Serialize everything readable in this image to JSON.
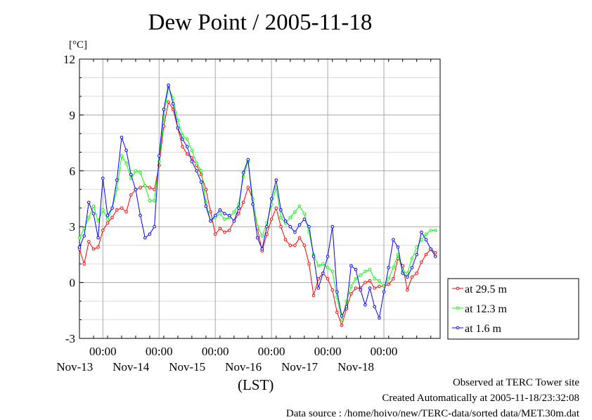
{
  "title": "Dew Point / 2005-11-18",
  "chart_data": {
    "type": "line",
    "title": "Dew Point / 2005-11-18",
    "ylabel": "[°C]",
    "xlabel": "(LST)",
    "ylim": [
      -3,
      12
    ],
    "yticks": [
      -3,
      0,
      3,
      6,
      9,
      12
    ],
    "xlim": [
      "2005-11-12T14:00",
      "2005-11-19T00:00"
    ],
    "xticks": [
      {
        "x": "2005-11-13T00:00",
        "time": "00:00",
        "date": "Nov-13"
      },
      {
        "x": "2005-11-14T00:00",
        "time": "00:00",
        "date": "Nov-14"
      },
      {
        "x": "2005-11-15T00:00",
        "time": "00:00",
        "date": "Nov-15"
      },
      {
        "x": "2005-11-16T00:00",
        "time": "00:00",
        "date": "Nov-16"
      },
      {
        "x": "2005-11-17T00:00",
        "time": "00:00",
        "date": "Nov-17"
      },
      {
        "x": "2005-11-18T00:00",
        "time": "00:00",
        "date": "Nov-18"
      }
    ],
    "grid": true,
    "legend_position": "right",
    "series": [
      {
        "name": "at 29.5 m",
        "color": "#ff0000",
        "marker": "circle",
        "points": [
          [
            "2005-11-12T14:00",
            1.8
          ],
          [
            "2005-11-12T16:00",
            1.0
          ],
          [
            "2005-11-12T18:00",
            2.2
          ],
          [
            "2005-11-12T20:00",
            1.8
          ],
          [
            "2005-11-12T22:00",
            1.9
          ],
          [
            "2005-11-13T00:00",
            2.8
          ],
          [
            "2005-11-13T02:00",
            3.2
          ],
          [
            "2005-11-13T04:00",
            3.5
          ],
          [
            "2005-11-13T06:00",
            3.9
          ],
          [
            "2005-11-13T08:00",
            4.0
          ],
          [
            "2005-11-13T10:00",
            3.8
          ],
          [
            "2005-11-13T12:00",
            4.7
          ],
          [
            "2005-11-13T14:00",
            5.0
          ],
          [
            "2005-11-13T16:00",
            5.1
          ],
          [
            "2005-11-13T18:00",
            5.2
          ],
          [
            "2005-11-13T20:00",
            5.1
          ],
          [
            "2005-11-13T22:00",
            5.0
          ],
          [
            "2005-11-14T00:00",
            6.3
          ],
          [
            "2005-11-14T02:00",
            8.4
          ],
          [
            "2005-11-14T04:00",
            9.7
          ],
          [
            "2005-11-14T06:00",
            9.3
          ],
          [
            "2005-11-14T08:00",
            8.3
          ],
          [
            "2005-11-14T10:00",
            7.3
          ],
          [
            "2005-11-14T12:00",
            6.9
          ],
          [
            "2005-11-14T14:00",
            6.7
          ],
          [
            "2005-11-14T16:00",
            6.3
          ],
          [
            "2005-11-14T18:00",
            5.8
          ],
          [
            "2005-11-14T20:00",
            5.0
          ],
          [
            "2005-11-14T22:00",
            3.8
          ],
          [
            "2005-11-15T00:00",
            2.6
          ],
          [
            "2005-11-15T02:00",
            2.9
          ],
          [
            "2005-11-15T04:00",
            2.7
          ],
          [
            "2005-11-15T06:00",
            2.8
          ],
          [
            "2005-11-15T08:00",
            3.3
          ],
          [
            "2005-11-15T10:00",
            3.7
          ],
          [
            "2005-11-15T12:00",
            4.3
          ],
          [
            "2005-11-15T14:00",
            5.1
          ],
          [
            "2005-11-15T16:00",
            4.5
          ],
          [
            "2005-11-15T18:00",
            2.9
          ],
          [
            "2005-11-15T20:00",
            1.7
          ],
          [
            "2005-11-15T22:00",
            2.6
          ],
          [
            "2005-11-16T00:00",
            3.4
          ],
          [
            "2005-11-16T02:00",
            4.0
          ],
          [
            "2005-11-16T04:00",
            3.0
          ],
          [
            "2005-11-16T06:00",
            2.3
          ],
          [
            "2005-11-16T08:00",
            2.0
          ],
          [
            "2005-11-16T10:00",
            2.0
          ],
          [
            "2005-11-16T12:00",
            2.4
          ],
          [
            "2005-11-16T14:00",
            2.0
          ],
          [
            "2005-11-16T16:00",
            1.0
          ],
          [
            "2005-11-16T18:00",
            -0.7
          ],
          [
            "2005-11-16T20:00",
            0.2
          ],
          [
            "2005-11-16T22:00",
            0.5
          ],
          [
            "2005-11-17T00:00",
            0.2
          ],
          [
            "2005-11-17T02:00",
            -0.4
          ],
          [
            "2005-11-17T04:00",
            -1.6
          ],
          [
            "2005-11-17T06:00",
            -2.3
          ],
          [
            "2005-11-17T08:00",
            -1.4
          ],
          [
            "2005-11-17T10:00",
            -0.6
          ],
          [
            "2005-11-17T12:00",
            -0.3
          ],
          [
            "2005-11-17T14:00",
            -0.3
          ],
          [
            "2005-11-17T16:00",
            0.0
          ],
          [
            "2005-11-17T18:00",
            0.1
          ],
          [
            "2005-11-17T20:00",
            -0.3
          ],
          [
            "2005-11-17T22:00",
            -0.2
          ],
          [
            "2005-11-18T00:00",
            -0.2
          ],
          [
            "2005-11-18T02:00",
            -0.1
          ],
          [
            "2005-11-18T04:00",
            0.2
          ],
          [
            "2005-11-18T06:00",
            1.3
          ],
          [
            "2005-11-18T08:00",
            0.9
          ],
          [
            "2005-11-18T10:00",
            -0.4
          ],
          [
            "2005-11-18T12:00",
            0.3
          ],
          [
            "2005-11-18T14:00",
            0.5
          ],
          [
            "2005-11-18T16:00",
            1.1
          ],
          [
            "2005-11-18T18:00",
            1.5
          ],
          [
            "2005-11-18T20:00",
            1.8
          ],
          [
            "2005-11-18T22:00",
            1.6
          ]
        ]
      },
      {
        "name": "at 12.3 m",
        "color": "#00ff00",
        "marker": "circle",
        "points": [
          [
            "2005-11-12T14:00",
            2.4
          ],
          [
            "2005-11-12T16:00",
            2.9
          ],
          [
            "2005-11-12T18:00",
            3.5
          ],
          [
            "2005-11-12T20:00",
            4.1
          ],
          [
            "2005-11-12T22:00",
            3.3
          ],
          [
            "2005-11-13T00:00",
            3.9
          ],
          [
            "2005-11-13T02:00",
            3.4
          ],
          [
            "2005-11-13T04:00",
            4.0
          ],
          [
            "2005-11-13T06:00",
            5.0
          ],
          [
            "2005-11-13T08:00",
            6.8
          ],
          [
            "2005-11-13T10:00",
            6.4
          ],
          [
            "2005-11-13T12:00",
            5.6
          ],
          [
            "2005-11-13T14:00",
            6.0
          ],
          [
            "2005-11-13T16:00",
            5.9
          ],
          [
            "2005-11-13T18:00",
            5.2
          ],
          [
            "2005-11-13T20:00",
            4.4
          ],
          [
            "2005-11-13T22:00",
            4.4
          ],
          [
            "2005-11-14T00:00",
            6.5
          ],
          [
            "2005-11-14T02:00",
            8.9
          ],
          [
            "2005-11-14T04:00",
            10.5
          ],
          [
            "2005-11-14T06:00",
            9.9
          ],
          [
            "2005-11-14T08:00",
            8.7
          ],
          [
            "2005-11-14T10:00",
            7.9
          ],
          [
            "2005-11-14T12:00",
            7.7
          ],
          [
            "2005-11-14T14:00",
            7.1
          ],
          [
            "2005-11-14T16:00",
            6.4
          ],
          [
            "2005-11-14T18:00",
            6.0
          ],
          [
            "2005-11-14T20:00",
            4.3
          ],
          [
            "2005-11-14T22:00",
            3.3
          ],
          [
            "2005-11-15T00:00",
            3.5
          ],
          [
            "2005-11-15T02:00",
            3.7
          ],
          [
            "2005-11-15T04:00",
            3.4
          ],
          [
            "2005-11-15T06:00",
            3.5
          ],
          [
            "2005-11-15T08:00",
            3.8
          ],
          [
            "2005-11-15T10:00",
            4.2
          ],
          [
            "2005-11-15T12:00",
            5.7
          ],
          [
            "2005-11-15T14:00",
            6.5
          ],
          [
            "2005-11-15T16:00",
            4.5
          ],
          [
            "2005-11-15T18:00",
            3.0
          ],
          [
            "2005-11-15T20:00",
            2.5
          ],
          [
            "2005-11-15T22:00",
            3.2
          ],
          [
            "2005-11-16T00:00",
            4.2
          ],
          [
            "2005-11-16T02:00",
            5.1
          ],
          [
            "2005-11-16T04:00",
            3.5
          ],
          [
            "2005-11-16T06:00",
            3.2
          ],
          [
            "2005-11-16T08:00",
            3.5
          ],
          [
            "2005-11-16T10:00",
            3.8
          ],
          [
            "2005-11-16T12:00",
            4.1
          ],
          [
            "2005-11-16T14:00",
            3.7
          ],
          [
            "2005-11-16T16:00",
            2.7
          ],
          [
            "2005-11-16T18:00",
            1.5
          ],
          [
            "2005-11-16T20:00",
            0.9
          ],
          [
            "2005-11-16T22:00",
            1.0
          ],
          [
            "2005-11-17T00:00",
            0.8
          ],
          [
            "2005-11-17T02:00",
            0.6
          ],
          [
            "2005-11-17T04:00",
            -0.8
          ],
          [
            "2005-11-17T06:00",
            -2.0
          ],
          [
            "2005-11-17T08:00",
            -1.0
          ],
          [
            "2005-11-17T10:00",
            -0.2
          ],
          [
            "2005-11-17T12:00",
            0.2
          ],
          [
            "2005-11-17T14:00",
            0.4
          ],
          [
            "2005-11-17T16:00",
            0.6
          ],
          [
            "2005-11-17T18:00",
            0.7
          ],
          [
            "2005-11-17T20:00",
            0.2
          ],
          [
            "2005-11-17T22:00",
            0.1
          ],
          [
            "2005-11-18T00:00",
            -0.2
          ],
          [
            "2005-11-18T02:00",
            0.2
          ],
          [
            "2005-11-18T04:00",
            0.8
          ],
          [
            "2005-11-18T06:00",
            1.5
          ],
          [
            "2005-11-18T08:00",
            0.6
          ],
          [
            "2005-11-18T10:00",
            0.5
          ],
          [
            "2005-11-18T12:00",
            1.3
          ],
          [
            "2005-11-18T14:00",
            1.9
          ],
          [
            "2005-11-18T16:00",
            2.3
          ],
          [
            "2005-11-18T18:00",
            2.6
          ],
          [
            "2005-11-18T20:00",
            2.8
          ],
          [
            "2005-11-18T22:00",
            2.8
          ]
        ]
      },
      {
        "name": "at 1.6 m",
        "color": "#0000ff",
        "marker": "circle",
        "points": [
          [
            "2005-11-12T14:00",
            1.9
          ],
          [
            "2005-11-12T16:00",
            2.5
          ],
          [
            "2005-11-12T18:00",
            4.3
          ],
          [
            "2005-11-12T20:00",
            3.7
          ],
          [
            "2005-11-12T22:00",
            2.4
          ],
          [
            "2005-11-13T00:00",
            5.6
          ],
          [
            "2005-11-13T02:00",
            3.6
          ],
          [
            "2005-11-13T04:00",
            4.0
          ],
          [
            "2005-11-13T06:00",
            5.5
          ],
          [
            "2005-11-13T08:00",
            7.8
          ],
          [
            "2005-11-13T10:00",
            7.1
          ],
          [
            "2005-11-13T12:00",
            5.8
          ],
          [
            "2005-11-13T14:00",
            5.0
          ],
          [
            "2005-11-13T16:00",
            3.6
          ],
          [
            "2005-11-13T18:00",
            2.4
          ],
          [
            "2005-11-13T20:00",
            2.6
          ],
          [
            "2005-11-13T22:00",
            3.0
          ],
          [
            "2005-11-14T00:00",
            6.8
          ],
          [
            "2005-11-14T02:00",
            9.3
          ],
          [
            "2005-11-14T04:00",
            10.6
          ],
          [
            "2005-11-14T06:00",
            9.6
          ],
          [
            "2005-11-14T08:00",
            8.3
          ],
          [
            "2005-11-14T10:00",
            7.7
          ],
          [
            "2005-11-14T12:00",
            7.3
          ],
          [
            "2005-11-14T14:00",
            6.5
          ],
          [
            "2005-11-14T16:00",
            6.0
          ],
          [
            "2005-11-14T18:00",
            5.4
          ],
          [
            "2005-11-14T20:00",
            4.1
          ],
          [
            "2005-11-14T22:00",
            3.3
          ],
          [
            "2005-11-15T00:00",
            3.6
          ],
          [
            "2005-11-15T02:00",
            3.9
          ],
          [
            "2005-11-15T04:00",
            3.7
          ],
          [
            "2005-11-15T06:00",
            3.6
          ],
          [
            "2005-11-15T08:00",
            3.3
          ],
          [
            "2005-11-15T10:00",
            4.0
          ],
          [
            "2005-11-15T12:00",
            5.9
          ],
          [
            "2005-11-15T14:00",
            6.6
          ],
          [
            "2005-11-15T16:00",
            4.2
          ],
          [
            "2005-11-15T18:00",
            2.4
          ],
          [
            "2005-11-15T20:00",
            1.8
          ],
          [
            "2005-11-15T22:00",
            3.0
          ],
          [
            "2005-11-16T00:00",
            4.5
          ],
          [
            "2005-11-16T02:00",
            5.5
          ],
          [
            "2005-11-16T04:00",
            3.9
          ],
          [
            "2005-11-16T06:00",
            3.3
          ],
          [
            "2005-11-16T08:00",
            3.0
          ],
          [
            "2005-11-16T10:00",
            2.7
          ],
          [
            "2005-11-16T12:00",
            3.1
          ],
          [
            "2005-11-16T14:00",
            3.4
          ],
          [
            "2005-11-16T16:00",
            3.0
          ],
          [
            "2005-11-16T18:00",
            1.4
          ],
          [
            "2005-11-16T20:00",
            -0.3
          ],
          [
            "2005-11-16T22:00",
            0.5
          ],
          [
            "2005-11-17T00:00",
            1.4
          ],
          [
            "2005-11-17T02:00",
            3.0
          ],
          [
            "2005-11-17T04:00",
            -0.5
          ],
          [
            "2005-11-17T06:00",
            -1.8
          ],
          [
            "2005-11-17T08:00",
            -1.3
          ],
          [
            "2005-11-17T10:00",
            0.9
          ],
          [
            "2005-11-17T12:00",
            0.7
          ],
          [
            "2005-11-17T14:00",
            -0.4
          ],
          [
            "2005-11-17T16:00",
            -1.2
          ],
          [
            "2005-11-17T18:00",
            -0.3
          ],
          [
            "2005-11-17T20:00",
            -1.3
          ],
          [
            "2005-11-17T22:00",
            -1.9
          ],
          [
            "2005-11-18T00:00",
            -0.5
          ],
          [
            "2005-11-18T02:00",
            0.8
          ],
          [
            "2005-11-18T04:00",
            2.3
          ],
          [
            "2005-11-18T06:00",
            1.9
          ],
          [
            "2005-11-18T08:00",
            0.5
          ],
          [
            "2005-11-18T10:00",
            0.3
          ],
          [
            "2005-11-18T12:00",
            0.8
          ],
          [
            "2005-11-18T14:00",
            1.5
          ],
          [
            "2005-11-18T16:00",
            2.7
          ],
          [
            "2005-11-18T18:00",
            2.3
          ],
          [
            "2005-11-18T20:00",
            1.8
          ],
          [
            "2005-11-18T22:00",
            1.4
          ]
        ]
      }
    ]
  },
  "footer": {
    "observed": "Observed at TERC Tower site",
    "created": "Created Automatically at 2005-11-18/23:32:08",
    "source": "Data source : /home/hoivo/new/TERC-data/sorted  data/MET.30m.dat"
  }
}
